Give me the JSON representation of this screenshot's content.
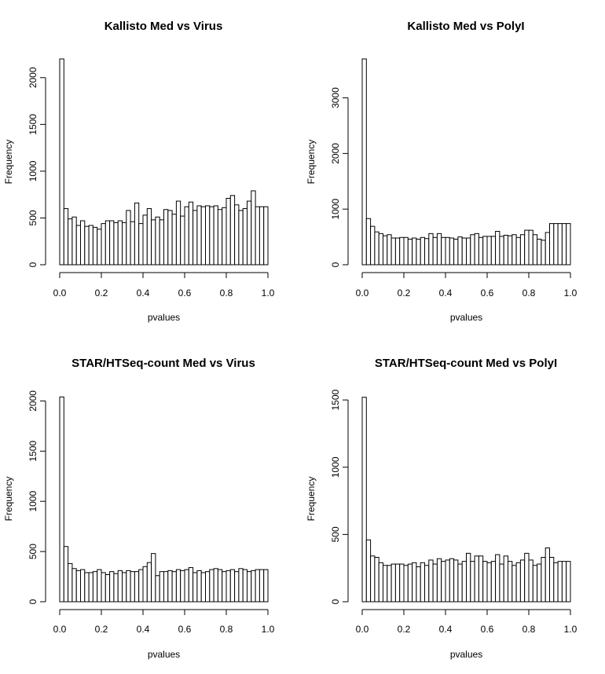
{
  "chart_data": [
    {
      "type": "bar",
      "title": "Kallisto Med vs Virus",
      "xlabel": "pvalues",
      "ylabel": "Frequency",
      "xlim": [
        0,
        1
      ],
      "ylim": [
        0,
        2200
      ],
      "xticks": [
        "0.0",
        "0.2",
        "0.4",
        "0.6",
        "0.8",
        "1.0"
      ],
      "yticks": [
        "0",
        "500",
        "1000",
        "1500",
        "2000"
      ],
      "bin_width": 0.02,
      "values": [
        2200,
        600,
        490,
        510,
        420,
        470,
        410,
        420,
        400,
        380,
        440,
        470,
        470,
        450,
        470,
        450,
        580,
        460,
        660,
        440,
        530,
        600,
        480,
        510,
        480,
        590,
        580,
        540,
        680,
        520,
        620,
        670,
        580,
        630,
        620,
        630,
        620,
        630,
        590,
        610,
        710,
        740,
        640,
        580,
        600,
        680,
        790,
        620,
        620,
        620
      ]
    },
    {
      "type": "bar",
      "title": "Kallisto Med vs PolyI",
      "xlabel": "pvalues",
      "ylabel": "Frequency",
      "xlim": [
        0,
        1
      ],
      "ylim": [
        0,
        3700
      ],
      "xticks": [
        "0.0",
        "0.2",
        "0.4",
        "0.6",
        "0.8",
        "1.0"
      ],
      "yticks": [
        "0",
        "1000",
        "2000",
        "3000"
      ],
      "bin_width": 0.02,
      "values": [
        3700,
        830,
        690,
        590,
        560,
        520,
        540,
        480,
        480,
        490,
        490,
        460,
        480,
        460,
        490,
        470,
        560,
        490,
        560,
        490,
        490,
        480,
        460,
        500,
        480,
        480,
        540,
        560,
        490,
        510,
        510,
        510,
        600,
        510,
        530,
        520,
        540,
        490,
        540,
        620,
        620,
        540,
        460,
        440,
        580,
        740,
        740,
        740,
        740,
        740
      ]
    },
    {
      "type": "bar",
      "title": "STAR/HTSeq-count Med vs Virus",
      "xlabel": "pvalues",
      "ylabel": "Frequency",
      "xlim": [
        0,
        1
      ],
      "ylim": [
        0,
        2050
      ],
      "xticks": [
        "0.0",
        "0.2",
        "0.4",
        "0.6",
        "0.8",
        "1.0"
      ],
      "yticks": [
        "0",
        "500",
        "1000",
        "1500",
        "2000"
      ],
      "bin_width": 0.02,
      "values": [
        2040,
        550,
        380,
        330,
        310,
        320,
        290,
        290,
        300,
        320,
        290,
        270,
        300,
        280,
        310,
        290,
        310,
        300,
        300,
        320,
        350,
        390,
        480,
        260,
        300,
        300,
        310,
        300,
        320,
        310,
        320,
        340,
        290,
        310,
        290,
        300,
        320,
        330,
        320,
        300,
        310,
        320,
        300,
        330,
        320,
        300,
        310,
        320,
        320,
        320
      ]
    },
    {
      "type": "bar",
      "title": "STAR/HTSeq-count Med vs PolyI",
      "xlabel": "pvalues",
      "ylabel": "Frequency",
      "xlim": [
        0,
        1
      ],
      "ylim": [
        0,
        1530
      ],
      "xticks": [
        "0.0",
        "0.2",
        "0.4",
        "0.6",
        "0.8",
        "1.0"
      ],
      "yticks": [
        "0",
        "500",
        "1000",
        "1500"
      ],
      "bin_width": 0.02,
      "values": [
        1520,
        460,
        340,
        330,
        290,
        270,
        270,
        280,
        280,
        280,
        270,
        280,
        290,
        260,
        290,
        270,
        310,
        280,
        320,
        300,
        310,
        320,
        310,
        280,
        300,
        360,
        300,
        340,
        340,
        300,
        290,
        300,
        350,
        280,
        340,
        300,
        270,
        290,
        310,
        360,
        310,
        270,
        280,
        330,
        400,
        330,
        290,
        300,
        300,
        300
      ]
    }
  ]
}
